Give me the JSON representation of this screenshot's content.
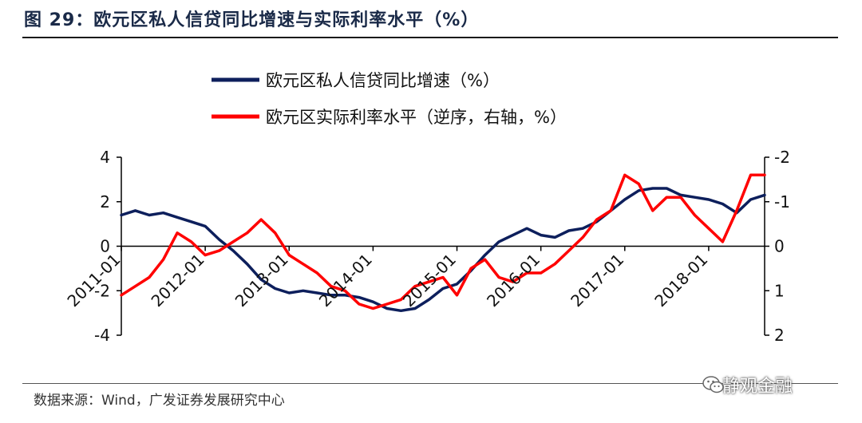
{
  "figure": {
    "title": "图 29：欧元区私人信贷同比增速与实际利率水平（%）",
    "source": "数据来源：Wind，广发证券发展研究中心",
    "watermark": "静观金融"
  },
  "chart_data": {
    "type": "line",
    "title": "",
    "xlabel": "",
    "ylabel": "",
    "x_ticks": [
      "2011-01",
      "2012-01",
      "2013-01",
      "2014-01",
      "2015-01",
      "2016-01",
      "2017-01",
      "2018-01"
    ],
    "x_range": [
      "2011-01",
      "2018-09"
    ],
    "y_left": {
      "ticks": [
        "4",
        "2",
        "0",
        "-2",
        "-4"
      ],
      "range": [
        -4,
        4
      ]
    },
    "y_right": {
      "ticks": [
        "-2",
        "-1",
        "0",
        "1",
        "2"
      ],
      "range": [
        -2,
        2
      ],
      "reversed": true
    },
    "grid": false,
    "legend_position": "top",
    "series": [
      {
        "name": "欧元区私人信贷同比增速（%）",
        "axis": "left",
        "color": "#0d1f5c",
        "x": [
          "2011-01",
          "2011-03",
          "2011-05",
          "2011-07",
          "2011-09",
          "2011-11",
          "2012-01",
          "2012-03",
          "2012-05",
          "2012-07",
          "2012-09",
          "2012-11",
          "2013-01",
          "2013-03",
          "2013-05",
          "2013-07",
          "2013-09",
          "2013-11",
          "2014-01",
          "2014-03",
          "2014-05",
          "2014-07",
          "2014-09",
          "2014-11",
          "2015-01",
          "2015-03",
          "2015-05",
          "2015-07",
          "2015-09",
          "2015-11",
          "2016-01",
          "2016-03",
          "2016-05",
          "2016-07",
          "2016-09",
          "2016-11",
          "2017-01",
          "2017-03",
          "2017-05",
          "2017-07",
          "2017-09",
          "2017-11",
          "2018-01",
          "2018-03",
          "2018-05",
          "2018-07",
          "2018-09"
        ],
        "values": [
          1.4,
          1.6,
          1.4,
          1.5,
          1.3,
          1.1,
          0.9,
          0.3,
          -0.2,
          -0.8,
          -1.5,
          -1.9,
          -2.1,
          -2.0,
          -2.1,
          -2.2,
          -2.2,
          -2.3,
          -2.5,
          -2.8,
          -2.9,
          -2.8,
          -2.4,
          -1.9,
          -1.7,
          -1.1,
          -0.4,
          0.2,
          0.5,
          0.8,
          0.5,
          0.4,
          0.7,
          0.8,
          1.1,
          1.6,
          2.1,
          2.5,
          2.6,
          2.6,
          2.3,
          2.2,
          2.1,
          1.9,
          1.5,
          2.1,
          2.3
        ]
      },
      {
        "name": "欧元区实际利率水平（逆序，右轴，%）",
        "axis": "right",
        "color": "#ff0000",
        "x": [
          "2011-01",
          "2011-03",
          "2011-05",
          "2011-07",
          "2011-09",
          "2011-11",
          "2012-01",
          "2012-03",
          "2012-05",
          "2012-07",
          "2012-09",
          "2012-11",
          "2013-01",
          "2013-03",
          "2013-05",
          "2013-07",
          "2013-09",
          "2013-11",
          "2014-01",
          "2014-03",
          "2014-05",
          "2014-07",
          "2014-09",
          "2014-11",
          "2015-01",
          "2015-03",
          "2015-05",
          "2015-07",
          "2015-09",
          "2015-11",
          "2016-01",
          "2016-03",
          "2016-05",
          "2016-07",
          "2016-09",
          "2016-11",
          "2017-01",
          "2017-03",
          "2017-05",
          "2017-07",
          "2017-09",
          "2017-11",
          "2018-01",
          "2018-03",
          "2018-05",
          "2018-07",
          "2018-09"
        ],
        "values": [
          1.1,
          0.9,
          0.7,
          0.3,
          -0.3,
          -0.1,
          0.2,
          0.1,
          -0.1,
          -0.3,
          -0.6,
          -0.3,
          0.2,
          0.4,
          0.6,
          0.9,
          1.0,
          1.3,
          1.4,
          1.3,
          1.2,
          0.9,
          0.8,
          0.7,
          1.1,
          0.5,
          0.3,
          0.7,
          0.8,
          0.6,
          0.6,
          0.4,
          0.1,
          -0.2,
          -0.6,
          -0.8,
          -1.6,
          -1.4,
          -0.8,
          -1.1,
          -1.1,
          -0.7,
          -0.4,
          -0.1,
          -0.8,
          -1.6,
          -1.6
        ]
      }
    ]
  }
}
